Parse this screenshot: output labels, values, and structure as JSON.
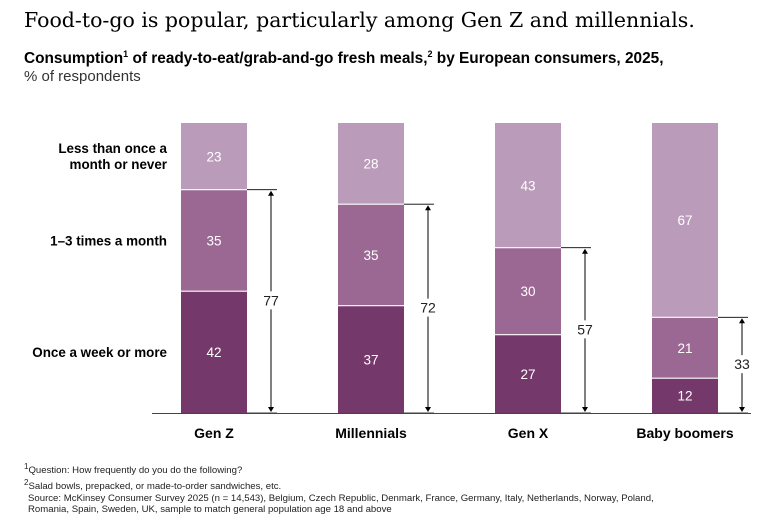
{
  "title": "Food-to-go is popular, particularly among Gen Z and millennials.",
  "subtitle_text": "Consumption",
  "subtitle_sup1": "1",
  "subtitle_text2": " of ready-to-eat/grab-and-go fresh meals,",
  "subtitle_sup2": "2",
  "subtitle_text3": " by European consumers, 2025,",
  "unit": "% of respondents",
  "colors": {
    "weekly": "#74386b",
    "monthly": "#9a6893",
    "rarely": "#bb9bba",
    "bracket": "#000000",
    "axis": "#444444"
  },
  "chart_data": {
    "type": "bar",
    "stacked": true,
    "orientation": "vertical",
    "categories": [
      "Gen Z",
      "Millennials",
      "Gen X",
      "Baby boomers"
    ],
    "series": [
      {
        "name": "Once a week or more",
        "values": [
          42,
          37,
          27,
          12
        ]
      },
      {
        "name": "1–3 times a month",
        "values": [
          35,
          35,
          30,
          21
        ]
      },
      {
        "name": "Less than once a month or never",
        "values": [
          23,
          28,
          43,
          67
        ]
      }
    ],
    "totals": {
      "values": [
        77,
        72,
        57,
        33
      ]
    },
    "ylim": [
      0,
      100
    ],
    "grid": false,
    "legend": "left, labels beside first bar"
  },
  "footnotes": [
    "Question: How frequently do you do the following?",
    "Salad bowls, prepacked, or made-to-order sandwiches, etc.",
    "Source: McKinsey Consumer Survey 2025 (n = 14,543), Belgium, Czech Republic, Denmark, France, Germany, Italy, Netherlands, Norway, Poland,",
    "Romania, Spain, Sweden, UK, sample to match general population age 18 and above"
  ],
  "footnote_marks": [
    "1",
    "2"
  ]
}
